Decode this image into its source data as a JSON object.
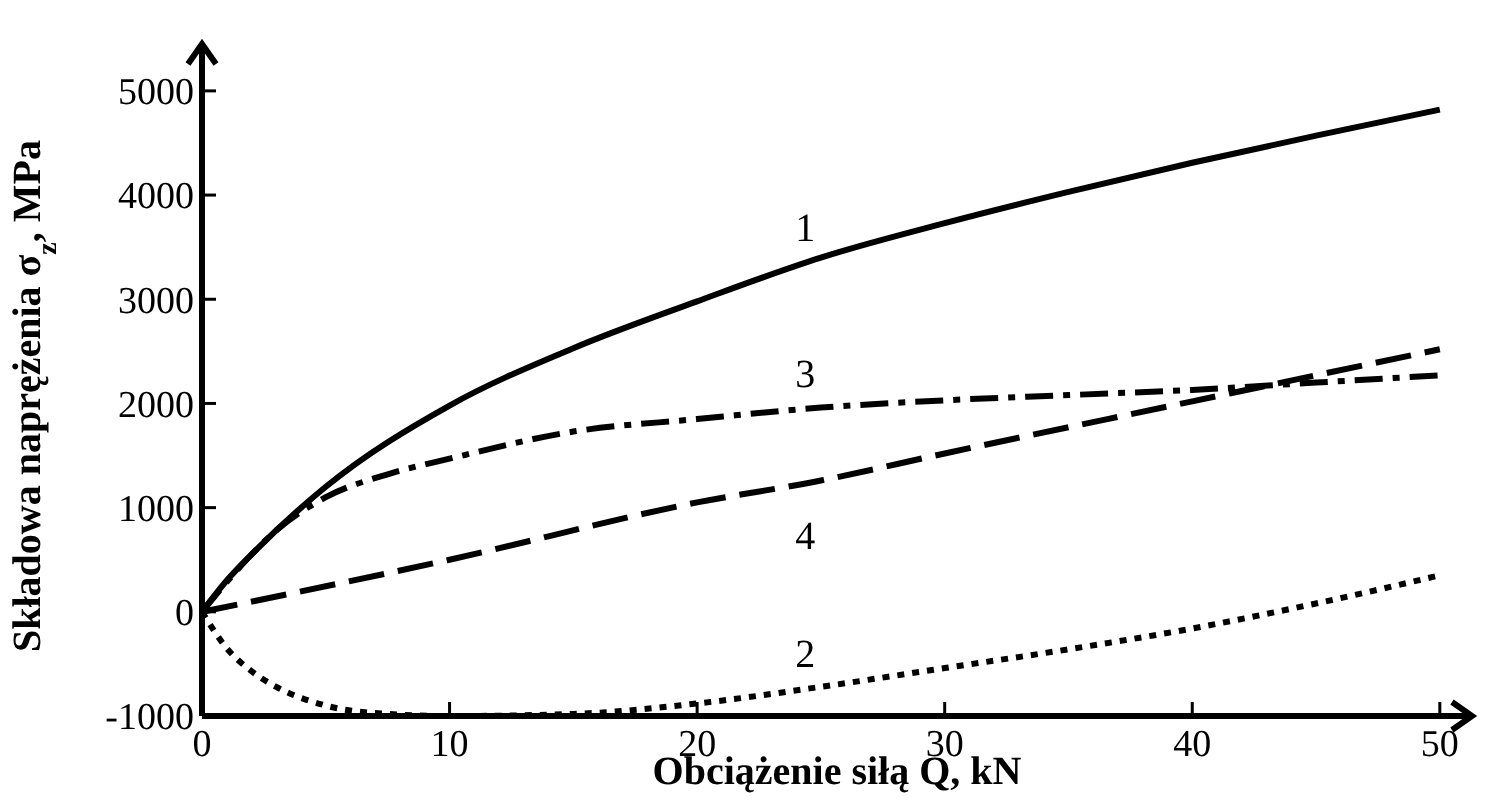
{
  "chart_data": {
    "type": "line",
    "xlabel": "Obciążenie siłą Q, kN",
    "ylabel": "Składowa naprężenia σ$_{z}$, MPa",
    "xlim": [
      0,
      51.3
    ],
    "ylim": [
      -1000,
      5450
    ],
    "xticks": [
      0,
      10,
      20,
      30,
      40,
      50
    ],
    "yticks": [
      -1000,
      0,
      1000,
      2000,
      3000,
      4000,
      5000
    ],
    "grid": false,
    "marker": "none",
    "series": [
      {
        "name": "1",
        "color": "#000000",
        "line_style": "solid",
        "x": [
          0,
          1,
          2,
          5,
          10,
          15,
          20,
          25,
          30,
          35,
          40,
          45,
          50
        ],
        "values": [
          0,
          300,
          550,
          1200,
          1980,
          2530,
          2980,
          3400,
          3730,
          4030,
          4310,
          4570,
          4820
        ]
      },
      {
        "name": "2",
        "color": "#000000",
        "line_style": "dotted",
        "x": [
          0,
          1,
          2,
          3,
          5,
          7.5,
          10,
          15,
          20,
          25,
          30,
          35,
          40,
          45,
          50
        ],
        "values": [
          0,
          -350,
          -570,
          -720,
          -900,
          -980,
          -1000,
          -980,
          -880,
          -720,
          -540,
          -360,
          -160,
          80,
          350
        ]
      },
      {
        "name": "3",
        "color": "#000000",
        "line_style": "dashdot",
        "x": [
          0,
          2,
          3,
          5,
          7.5,
          10,
          15,
          20,
          25,
          30,
          35,
          40,
          45,
          50
        ],
        "values": [
          0,
          550,
          780,
          1100,
          1320,
          1470,
          1730,
          1850,
          1960,
          2030,
          2080,
          2130,
          2200,
          2270
        ]
      },
      {
        "name": "4",
        "color": "#000000",
        "line_style": "dashed",
        "x": [
          0,
          10,
          20,
          25,
          30,
          40,
          50
        ],
        "values": [
          0,
          500,
          1050,
          1260,
          1520,
          2020,
          2520
        ]
      }
    ]
  }
}
